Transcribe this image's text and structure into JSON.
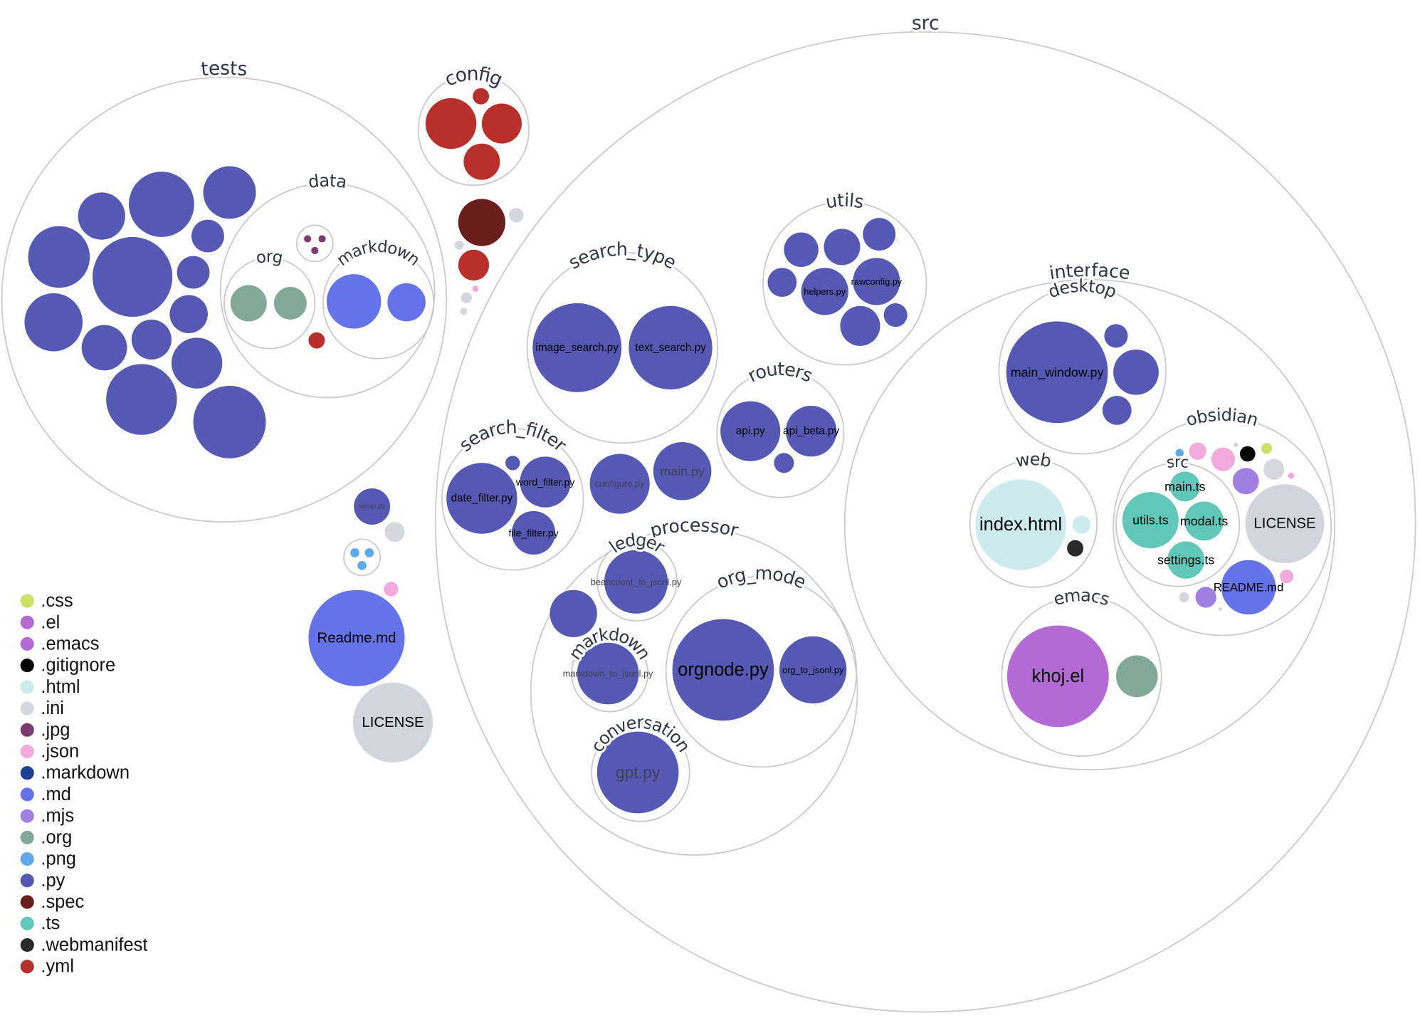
{
  "root": {
    "children": [
      {
        "type": "folder",
        "name": "tests",
        "children": [
          {
            "type": "file",
            "ext": ".py"
          },
          {
            "type": "file",
            "ext": ".py"
          },
          {
            "type": "file",
            "ext": ".py"
          },
          {
            "type": "file",
            "ext": ".py"
          },
          {
            "type": "file",
            "ext": ".py"
          },
          {
            "type": "file",
            "ext": ".py"
          },
          {
            "type": "file",
            "ext": ".py"
          },
          {
            "type": "file",
            "ext": ".py"
          },
          {
            "type": "file",
            "ext": ".py"
          },
          {
            "type": "file",
            "ext": ".py"
          },
          {
            "type": "file",
            "ext": ".py"
          },
          {
            "type": "file",
            "ext": ".py"
          },
          {
            "type": "file",
            "ext": ".py"
          },
          {
            "type": "file",
            "ext": ".py"
          },
          {
            "type": "folder",
            "name": "data",
            "children": [
              {
                "type": "folder",
                "name": "",
                "children": [
                  {
                    "type": "file",
                    "ext": ".jpg"
                  },
                  {
                    "type": "file",
                    "ext": ".jpg"
                  },
                  {
                    "type": "file",
                    "ext": ".jpg"
                  }
                ]
              },
              {
                "type": "folder",
                "name": "org",
                "children": [
                  {
                    "type": "file",
                    "ext": ".org"
                  },
                  {
                    "type": "file",
                    "ext": ".org"
                  }
                ]
              },
              {
                "type": "folder",
                "name": "markdown",
                "children": [
                  {
                    "type": "file",
                    "ext": ".md"
                  },
                  {
                    "type": "file",
                    "ext": ".md"
                  }
                ]
              },
              {
                "type": "file",
                "ext": ".yml"
              }
            ]
          }
        ]
      },
      {
        "type": "folder",
        "name": "config",
        "children": [
          {
            "type": "file",
            "ext": ".yml"
          },
          {
            "type": "file",
            "ext": ".yml"
          },
          {
            "type": "file",
            "ext": ".yml"
          },
          {
            "type": "file",
            "ext": ".yml"
          }
        ]
      },
      {
        "type": "file",
        "ext": ".spec"
      },
      {
        "type": "file",
        "ext": ".ini"
      },
      {
        "type": "file",
        "ext": ".ini"
      },
      {
        "type": "file",
        "ext": ".yml"
      },
      {
        "type": "file",
        "ext": ".json"
      },
      {
        "type": "file",
        "ext": ".ini"
      },
      {
        "type": "file",
        "ext": ".ini"
      },
      {
        "type": "file",
        "name": "setup.py",
        "ext": ".py"
      },
      {
        "type": "file",
        "ext": ".ini"
      },
      {
        "type": "folder",
        "name": "",
        "children": [
          {
            "type": "file",
            "ext": ".png"
          },
          {
            "type": "file",
            "ext": ".png"
          },
          {
            "type": "file",
            "ext": ".png"
          }
        ]
      },
      {
        "type": "file",
        "ext": ".json"
      },
      {
        "type": "file",
        "name": "Readme.md",
        "ext": ".md"
      },
      {
        "type": "file",
        "name": "LICENSE",
        "ext": ""
      },
      {
        "type": "folder",
        "name": "src",
        "children": [
          {
            "type": "folder",
            "name": "search_type",
            "children": [
              {
                "type": "file",
                "name": "image_search.py",
                "ext": ".py"
              },
              {
                "type": "file",
                "name": "text_search.py",
                "ext": ".py"
              }
            ]
          },
          {
            "type": "folder",
            "name": "utils",
            "children": [
              {
                "type": "file",
                "ext": ".py"
              },
              {
                "type": "file",
                "ext": ".py"
              },
              {
                "type": "file",
                "ext": ".py"
              },
              {
                "type": "file",
                "ext": ".py"
              },
              {
                "type": "file",
                "name": "helpers.py",
                "ext": ".py"
              },
              {
                "type": "file",
                "name": "rawconfig.py",
                "ext": ".py"
              },
              {
                "type": "file",
                "ext": ".py"
              },
              {
                "type": "file",
                "ext": ".py"
              }
            ]
          },
          {
            "type": "folder",
            "name": "routers",
            "children": [
              {
                "type": "file",
                "name": "api.py",
                "ext": ".py"
              },
              {
                "type": "file",
                "name": "api_beta.py",
                "ext": ".py"
              },
              {
                "type": "file",
                "ext": ".py"
              }
            ]
          },
          {
            "type": "folder",
            "name": "search_filter",
            "children": [
              {
                "type": "file",
                "name": "date_filter.py",
                "ext": ".py"
              },
              {
                "type": "file",
                "ext": ".py"
              },
              {
                "type": "file",
                "name": "word_filter.py",
                "ext": ".py"
              },
              {
                "type": "file",
                "name": "file_filter.py",
                "ext": ".py"
              }
            ]
          },
          {
            "type": "file",
            "name": "configure.py",
            "ext": ".py"
          },
          {
            "type": "file",
            "name": "main.py",
            "ext": ".py"
          },
          {
            "type": "folder",
            "name": "processor",
            "children": [
              {
                "type": "folder",
                "name": "ledger",
                "children": [
                  {
                    "type": "file",
                    "name": "beancount_to_jsonl.py",
                    "ext": ".py"
                  }
                ]
              },
              {
                "type": "file",
                "ext": ".py"
              },
              {
                "type": "folder",
                "name": "markdown",
                "children": [
                  {
                    "type": "file",
                    "name": "markdown_to_jsonl.py",
                    "ext": ".py"
                  }
                ]
              },
              {
                "type": "folder",
                "name": "org_mode",
                "children": [
                  {
                    "type": "file",
                    "name": "orgnode.py",
                    "ext": ".py"
                  },
                  {
                    "type": "file",
                    "name": "org_to_jsonl.py",
                    "ext": ".py"
                  }
                ]
              },
              {
                "type": "folder",
                "name": "conversation",
                "children": [
                  {
                    "type": "file",
                    "name": "gpt.py",
                    "ext": ".py"
                  }
                ]
              }
            ]
          },
          {
            "type": "folder",
            "name": "interface",
            "children": [
              {
                "type": "folder",
                "name": "desktop",
                "children": [
                  {
                    "type": "file",
                    "name": "main_window.py",
                    "ext": ".py"
                  },
                  {
                    "type": "file",
                    "ext": ".py"
                  },
                  {
                    "type": "file",
                    "ext": ".py"
                  },
                  {
                    "type": "file",
                    "ext": ".py"
                  }
                ]
              },
              {
                "type": "folder",
                "name": "web",
                "children": [
                  {
                    "type": "file",
                    "name": "index.html",
                    "ext": ".html"
                  },
                  {
                    "type": "file",
                    "ext": ".html"
                  },
                  {
                    "type": "file",
                    "ext": ".webmanifest"
                  }
                ]
              },
              {
                "type": "folder",
                "name": "obsidian",
                "children": [
                  {
                    "type": "file",
                    "ext": ".png"
                  },
                  {
                    "type": "file",
                    "ext": ".json"
                  },
                  {
                    "type": "file",
                    "ext": ".json"
                  },
                  {
                    "type": "file",
                    "ext": ".ini"
                  },
                  {
                    "type": "file",
                    "ext": ".gitignore"
                  },
                  {
                    "type": "file",
                    "ext": ".css"
                  },
                  {
                    "type": "file",
                    "ext": ".ini"
                  },
                  {
                    "type": "file",
                    "ext": ".json"
                  },
                  {
                    "type": "file",
                    "ext": ".mjs"
                  },
                  {
                    "type": "file",
                    "name": "LICENSE",
                    "ext": ""
                  },
                  {
                    "type": "file",
                    "name": "README.md",
                    "ext": ".md"
                  },
                  {
                    "type": "file",
                    "ext": ".json"
                  },
                  {
                    "type": "file",
                    "ext": ".ini"
                  },
                  {
                    "type": "file",
                    "ext": ".mjs"
                  },
                  {
                    "type": "file",
                    "ext": ".ini"
                  },
                  {
                    "type": "folder",
                    "name": "src",
                    "children": [
                      {
                        "type": "file",
                        "name": "main.ts",
                        "ext": ".ts"
                      },
                      {
                        "type": "file",
                        "name": "utils.ts",
                        "ext": ".ts"
                      },
                      {
                        "type": "file",
                        "name": "modal.ts",
                        "ext": ".ts"
                      },
                      {
                        "type": "file",
                        "name": "settings.ts",
                        "ext": ".ts"
                      }
                    ]
                  }
                ]
              },
              {
                "type": "folder",
                "name": "emacs",
                "children": [
                  {
                    "type": "file",
                    "name": "khoj.el",
                    "ext": ".el"
                  },
                  {
                    "type": "file",
                    "ext": ".org"
                  }
                ]
              }
            ]
          }
        ]
      }
    ]
  },
  "legend": [
    {
      "ext": ".css",
      "color": "#c9e265"
    },
    {
      "ext": ".el",
      "color": "#b36ad4"
    },
    {
      "ext": ".emacs",
      "color": "#b36ad4"
    },
    {
      "ext": ".gitignore",
      "color": "#000000"
    },
    {
      "ext": ".html",
      "color": "#cdebee"
    },
    {
      "ext": ".ini",
      "color": "#d2d8de"
    },
    {
      "ext": ".jpg",
      "color": "#7b3a6e"
    },
    {
      "ext": ".json",
      "color": "#f2a9db"
    },
    {
      "ext": ".markdown",
      "color": "#1c3f95"
    },
    {
      "ext": ".md",
      "color": "#6673e8"
    },
    {
      "ext": ".mjs",
      "color": "#9f7fe0"
    },
    {
      "ext": ".org",
      "color": "#82a898"
    },
    {
      "ext": ".png",
      "color": "#5fa8ec"
    },
    {
      "ext": ".py",
      "color": "#5659b4"
    },
    {
      "ext": ".spec",
      "color": "#6a1e1c"
    },
    {
      "ext": ".ts",
      "color": "#61c8b9"
    },
    {
      "ext": ".webmanifest",
      "color": "#2a2a2a"
    },
    {
      "ext": ".yml",
      "color": "#b82f2c"
    }
  ],
  "colors": {
    "no_extension": "#d0d5de",
    "folder_outline": "#cdc9c9",
    "label": "#2e3648"
  }
}
